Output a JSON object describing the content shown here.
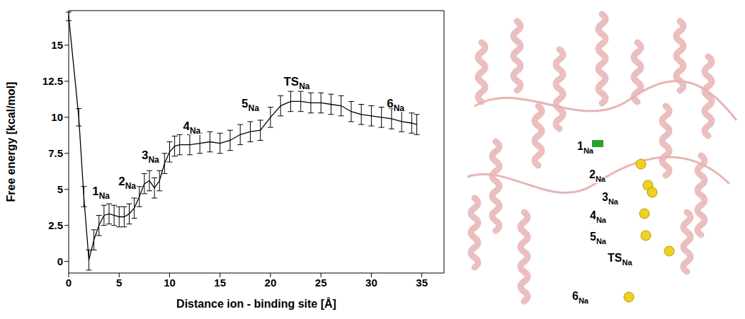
{
  "chart_data": {
    "type": "line",
    "color": "#000000",
    "grid": false,
    "x_label": "Distance ion - binding site [Å]",
    "y_label": "Free energy [kcal/mol]",
    "xlim": [
      0,
      37.2
    ],
    "ylim": [
      -0.8,
      17.4
    ],
    "xticks": [
      0,
      5,
      10,
      15,
      20,
      25,
      30,
      35
    ],
    "yticks": [
      0,
      2.5,
      5,
      7.5,
      10,
      12.5,
      15
    ],
    "x": [
      0,
      1,
      1.5,
      2,
      2.5,
      3,
      3.5,
      4,
      4.5,
      5,
      5.5,
      6,
      6.5,
      7,
      7.5,
      8,
      8.5,
      9,
      9.5,
      10,
      10.5,
      11,
      12,
      13,
      14,
      15,
      16,
      17,
      18,
      19,
      20,
      21,
      22,
      23,
      24,
      25,
      26,
      27,
      28,
      29,
      30,
      31,
      32,
      33,
      34,
      34.5
    ],
    "values": [
      17,
      10,
      4.5,
      0.1,
      1.5,
      2.5,
      3.2,
      3.3,
      3.2,
      3.1,
      3.1,
      3.3,
      3.7,
      4.5,
      5.4,
      5.6,
      5.1,
      5.6,
      6.8,
      7.6,
      8,
      8.1,
      8.1,
      8.2,
      8.3,
      8.2,
      8.4,
      8.8,
      9,
      9.1,
      10,
      10.8,
      11.1,
      11.1,
      11,
      11,
      10.9,
      10.8,
      10.4,
      10.2,
      10.1,
      10,
      9.9,
      9.7,
      9.6,
      9.5
    ],
    "errors": [
      0.3,
      0.6,
      0.7,
      0.7,
      0.7,
      0.7,
      0.7,
      0.7,
      0.7,
      0.7,
      0.7,
      0.7,
      0.7,
      0.7,
      0.7,
      0.7,
      0.7,
      0.7,
      0.7,
      0.7,
      0.7,
      0.7,
      0.7,
      0.7,
      0.7,
      0.7,
      0.7,
      0.7,
      0.7,
      0.7,
      0.7,
      0.7,
      0.7,
      0.7,
      0.7,
      0.7,
      0.7,
      0.7,
      0.7,
      0.7,
      0.7,
      0.7,
      0.7,
      0.7,
      0.7,
      0.7
    ],
    "annotations": [
      {
        "text": "1",
        "subscript": "Na",
        "x": 3.2,
        "y": 4.6
      },
      {
        "text": "2",
        "subscript": "Na",
        "x": 5.8,
        "y": 5.3
      },
      {
        "text": "3",
        "subscript": "Na",
        "x": 8.1,
        "y": 7.1
      },
      {
        "text": "4",
        "subscript": "Na",
        "x": 12.2,
        "y": 9.1
      },
      {
        "text": "5",
        "subscript": "Na",
        "x": 18,
        "y": 10.7
      },
      {
        "text": "TS",
        "subscript": "Na",
        "x": 22.6,
        "y": 12.2
      },
      {
        "text": "6",
        "subscript": "Na",
        "x": 32.4,
        "y": 10.7
      }
    ]
  },
  "structure": {
    "labels": [
      {
        "text": "1",
        "subscript": "Na"
      },
      {
        "text": "2",
        "subscript": "Na"
      },
      {
        "text": "3",
        "subscript": "Na"
      },
      {
        "text": "4",
        "subscript": "Na"
      },
      {
        "text": "5",
        "subscript": "Na"
      },
      {
        "text": "TS",
        "subscript": "Na"
      },
      {
        "text": "6",
        "subscript": "Na"
      }
    ]
  }
}
